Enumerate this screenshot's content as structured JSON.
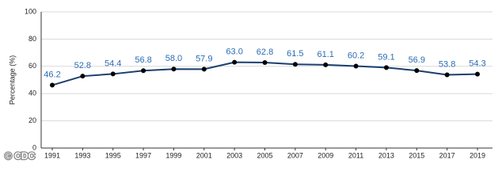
{
  "chart_data": {
    "type": "line",
    "y_label": "Percentage (%)",
    "credit": "© CDC",
    "categories": [
      "1991",
      "1993",
      "1995",
      "1997",
      "1999",
      "2001",
      "2003",
      "2005",
      "2007",
      "2009",
      "2011",
      "2013",
      "2015",
      "2017",
      "2019"
    ],
    "values": [
      46.2,
      52.8,
      54.4,
      56.8,
      58.0,
      57.9,
      63.0,
      62.8,
      61.5,
      61.1,
      60.2,
      59.1,
      56.9,
      53.8,
      54.3
    ],
    "value_labels": [
      "46.2",
      "52.8",
      "54.4",
      "56.8",
      "58.0",
      "57.9",
      "63.0",
      "62.8",
      "61.5",
      "61.1",
      "60.2",
      "59.1",
      "56.9",
      "53.8",
      "54.3"
    ],
    "color": "#1b3f6e",
    "label_color": "#2a6cb5",
    "marker_color": "#000000",
    "ylim": [
      0,
      100
    ],
    "yticks": [
      0,
      20,
      40,
      60,
      80,
      100
    ],
    "grid": true
  }
}
